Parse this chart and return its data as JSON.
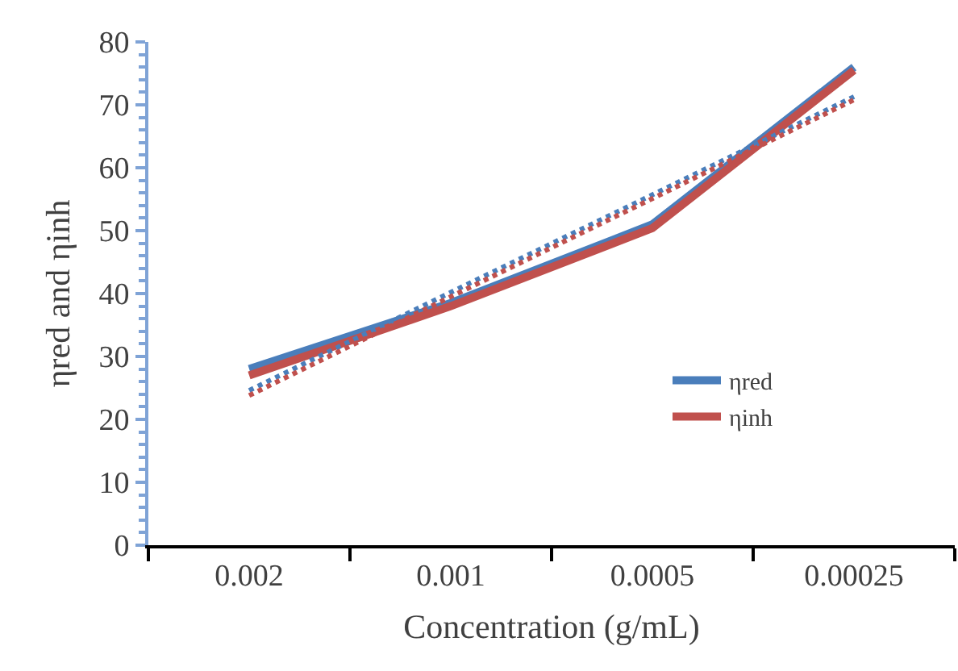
{
  "chart_data": {
    "type": "line",
    "xlabel": "Concentration (g/mL)",
    "ylabel": "ηred and ηinh",
    "categories": [
      "0.002",
      "0.001",
      "0.0005",
      "0.00025"
    ],
    "series": [
      {
        "name": "ηred",
        "color": "#4a7ebb",
        "values": [
          28,
          38.5,
          51,
          76
        ]
      },
      {
        "name": "ηinh",
        "color": "#c0504d",
        "values": [
          27,
          38,
          50.4,
          75.5
        ]
      },
      {
        "type": "line",
        "color": "#4a7ebb",
        "line_style": "dotted",
        "values": [
          24.6,
          40.2,
          55.7,
          71.3
        ]
      },
      {
        "type": "line",
        "color": "#c0504d",
        "line_style": "dotted",
        "values": [
          23.8,
          39.5,
          55.1,
          70.8
        ]
      }
    ],
    "ylim": [
      0,
      80
    ],
    "yticks": [
      0,
      10,
      20,
      30,
      40,
      50,
      60,
      70,
      80
    ],
    "grid": false,
    "legend": "bottom right",
    "marker": "none",
    "line_style": "solid"
  }
}
